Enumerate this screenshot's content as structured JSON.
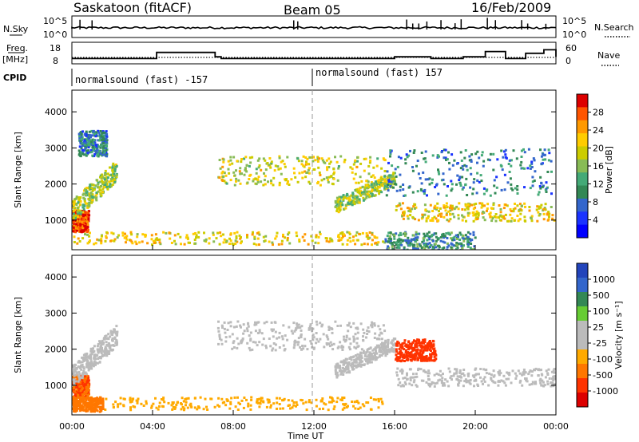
{
  "header": {
    "station": "Saskatoon (fitACF)",
    "beam": "Beam 05",
    "date": "16/Feb/2009"
  },
  "info_panels": {
    "nsky_label": "N.Sky",
    "nsearch_label": "N.Search",
    "freq_label": "Freq.",
    "freq_unit": "[MHz]",
    "nave_label": "Nave",
    "cpid_label": "CPID",
    "nsky_ticks": [
      "10^5",
      "10^0"
    ],
    "nsearch_ticks": [
      "10^5",
      "10^0"
    ],
    "freq_ticks": [
      "18",
      "8"
    ],
    "nave_ticks": [
      "60",
      "0"
    ],
    "freq_mhz": {
      "times_h": [
        0,
        2.5,
        4.2,
        7.1,
        7.4,
        16.0,
        17.8,
        19.4,
        20.5,
        21.5,
        22.5,
        23.4,
        24
      ],
      "values": [
        11,
        11,
        14.5,
        12,
        11,
        12,
        11,
        12,
        15,
        11,
        14,
        16,
        12
      ]
    },
    "nave": {
      "times_h": [
        0,
        24
      ],
      "values": [
        22,
        22
      ]
    },
    "cpid_segments": [
      {
        "label": "normalsound (fast) -157",
        "start_h": 0,
        "end_h": 12
      },
      {
        "label": "normalsound (fast) 157",
        "start_h": 12,
        "end_h": 24
      }
    ]
  },
  "chart_data": [
    {
      "type": "heatmap",
      "name": "power",
      "ylabel": "Slant Range [km]",
      "ylim": [
        180,
        4600
      ],
      "yticks": [
        1000,
        2000,
        3000,
        4000
      ],
      "xlim_h": [
        0,
        24
      ],
      "colorbar": {
        "label": "Power [dB]",
        "ticks": [
          "28",
          "24",
          "20",
          "16",
          "12",
          "8",
          "4"
        ],
        "colors": [
          "#dd0000",
          "#ff5500",
          "#ff9900",
          "#ffcc00",
          "#cccc00",
          "#88bb55",
          "#44aa77",
          "#338855",
          "#3366cc",
          "#1a33ff",
          "#0000ff"
        ]
      },
      "regions": [
        {
          "t0": 0.0,
          "t1": 0.8,
          "r0": 700,
          "r1": 1300,
          "level": 26
        },
        {
          "t0": 0.0,
          "t1": 2.2,
          "r0": 1000,
          "r1": 2700,
          "level": 14,
          "slant": true
        },
        {
          "t0": 0.3,
          "t1": 1.7,
          "r0": 2800,
          "r1": 3500,
          "level": 6
        },
        {
          "t0": 0.0,
          "t1": 15.5,
          "r0": 350,
          "r1": 700,
          "level": 18
        },
        {
          "t0": 7.2,
          "t1": 15.5,
          "r0": 2000,
          "r1": 2800,
          "level": 16
        },
        {
          "t0": 13.0,
          "t1": 16.0,
          "r0": 1200,
          "r1": 2400,
          "level": 14,
          "slant": true
        },
        {
          "t0": 16.0,
          "t1": 23.9,
          "r0": 1000,
          "r1": 1500,
          "level": 18
        },
        {
          "t0": 15.5,
          "t1": 23.8,
          "r0": 1700,
          "r1": 3000,
          "level": 6
        },
        {
          "t0": 15.5,
          "t1": 20.0,
          "r0": 200,
          "r1": 700,
          "level": 8
        }
      ]
    },
    {
      "type": "heatmap",
      "name": "velocity",
      "ylabel": "Slant Range [km]",
      "ylim": [
        180,
        4600
      ],
      "yticks": [
        1000,
        2000,
        3000,
        4000
      ],
      "xlim_h": [
        0,
        24
      ],
      "xlabel": "Time UT",
      "xticks": [
        "00:00",
        "04:00",
        "08:00",
        "12:00",
        "16:00",
        "20:00",
        "00:00"
      ],
      "colorbar": {
        "label": "Velocity [m s⁻¹]",
        "ticks": [
          "1000",
          "500",
          "100",
          "25",
          "-25",
          "-100",
          "-500",
          "-1000"
        ],
        "colors": [
          "#2244bb",
          "#3366cc",
          "#338855",
          "#66cc33",
          "#bbbbbb",
          "#bbbbbb",
          "#ffaa00",
          "#ff7700",
          "#ff3300",
          "#dd0000"
        ]
      },
      "regions": [
        {
          "t0": 0.0,
          "t1": 0.8,
          "r0": 700,
          "r1": 1300,
          "level": -300
        },
        {
          "t0": 0.0,
          "t1": 2.2,
          "r0": 1000,
          "r1": 2700,
          "level": 0,
          "slant": true
        },
        {
          "t0": 0.0,
          "t1": 15.5,
          "r0": 350,
          "r1": 700,
          "level": -60
        },
        {
          "t0": 7.2,
          "t1": 15.5,
          "r0": 2000,
          "r1": 2800,
          "level": 0
        },
        {
          "t0": 13.0,
          "t1": 16.0,
          "r0": 1200,
          "r1": 2400,
          "level": 0,
          "slant": true
        },
        {
          "t0": 16.0,
          "t1": 18.0,
          "r0": 1700,
          "r1": 2300,
          "level": -500
        },
        {
          "t0": 16.0,
          "t1": 23.9,
          "r0": 1000,
          "r1": 1500,
          "level": 0
        },
        {
          "t0": 0.0,
          "t1": 1.5,
          "r0": 300,
          "r1": 700,
          "level": -120
        }
      ]
    }
  ],
  "colors": {
    "axis": "#000000",
    "noon_line": "#999999"
  }
}
